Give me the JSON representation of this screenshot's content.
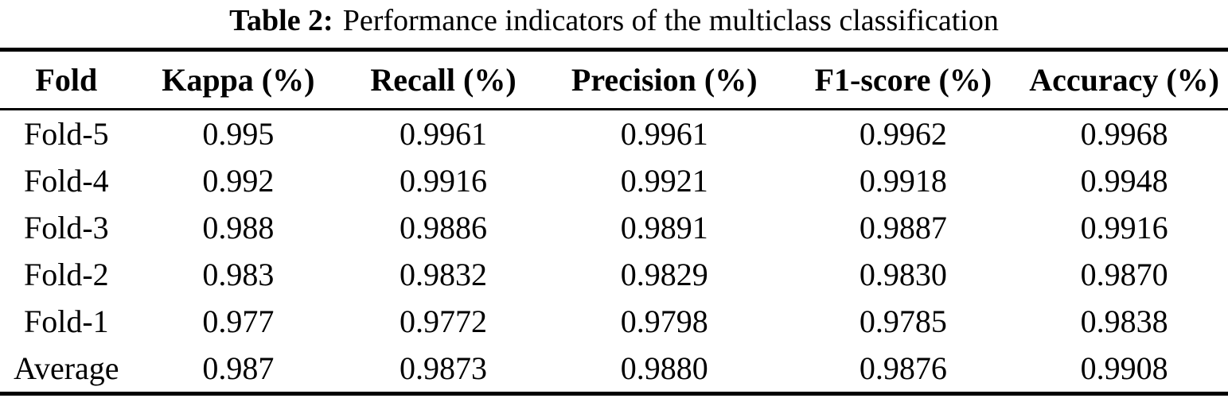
{
  "caption": {
    "label": "Table 2:",
    "text": "Performance indicators of the multiclass classification"
  },
  "chart_data": {
    "type": "table",
    "title": "Table 2: Performance indicators of the multiclass classification",
    "columns": [
      "Fold",
      "Kappa (%)",
      "Recall (%)",
      "Precision (%)",
      "F1-score (%)",
      "Accuracy (%)"
    ],
    "rows": [
      [
        "Fold-5",
        "0.995",
        "0.9961",
        "0.9961",
        "0.9962",
        "0.9968"
      ],
      [
        "Fold-4",
        "0.992",
        "0.9916",
        "0.9921",
        "0.9918",
        "0.9948"
      ],
      [
        "Fold-3",
        "0.988",
        "0.9886",
        "0.9891",
        "0.9887",
        "0.9916"
      ],
      [
        "Fold-2",
        "0.983",
        "0.9832",
        "0.9829",
        "0.9830",
        "0.9870"
      ],
      [
        "Fold-1",
        "0.977",
        "0.9772",
        "0.9798",
        "0.9785",
        "0.9838"
      ],
      [
        "Average",
        "0.987",
        "0.9873",
        "0.9880",
        "0.9876",
        "0.9908"
      ]
    ],
    "colors": {
      "text": "#000000",
      "background": "#ffffff",
      "rule": "#000000"
    }
  }
}
